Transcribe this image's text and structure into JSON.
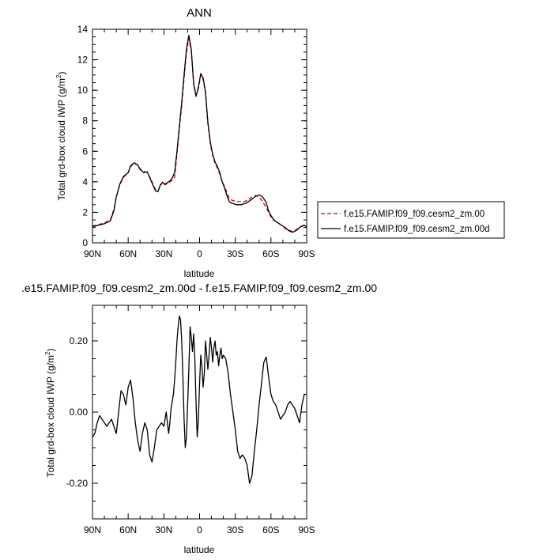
{
  "chart_data": [
    {
      "type": "line",
      "title": "ANN",
      "xlabel": "latitude",
      "ylabel": "Total grd-box cloud IWP (g/m",
      "ylabel_sup": "2",
      "ylabel_close": ")",
      "xlim": [
        90,
        -90
      ],
      "ylim": [
        0,
        14
      ],
      "x_ticks": [
        90,
        60,
        30,
        0,
        -30,
        -60,
        -90
      ],
      "x_tick_labels": [
        "90N",
        "60N",
        "30N",
        "0",
        "30S",
        "60S",
        "90S"
      ],
      "y_ticks": [
        0,
        2,
        4,
        6,
        8,
        10,
        12,
        14
      ],
      "y_tick_labels": [
        "0",
        "2",
        "4",
        "6",
        "8",
        "10",
        "12",
        "14"
      ],
      "legend_position": "right-outside",
      "series": [
        {
          "name": "f.e15.FAMIP.f09_f09.cesm2_zm.00",
          "color": "#cc0000",
          "dash": "dashed",
          "x": [
            90,
            85,
            80,
            75,
            72,
            70,
            67,
            64,
            60,
            58,
            55,
            52,
            50,
            47,
            44,
            41,
            39,
            37,
            35,
            33,
            31,
            29,
            27,
            25,
            23,
            21,
            19,
            17,
            15,
            13,
            11,
            9,
            7,
            5,
            3,
            1,
            -1,
            -3,
            -5,
            -7,
            -9,
            -11,
            -13,
            -15,
            -17,
            -19,
            -21,
            -23,
            -25,
            -27,
            -29,
            -31,
            -33,
            -35,
            -37,
            -39,
            -41,
            -44,
            -47,
            -50,
            -53,
            -56,
            -58,
            -60,
            -62,
            -64,
            -66,
            -68,
            -70,
            -72,
            -74,
            -76,
            -78,
            -80,
            -82,
            -84,
            -86,
            -88,
            -90
          ],
          "y": [
            1.1,
            1.2,
            1.3,
            1.5,
            2.2,
            3.0,
            3.8,
            4.3,
            4.6,
            5.0,
            5.2,
            5.1,
            4.8,
            4.7,
            4.6,
            4.2,
            3.8,
            3.5,
            3.4,
            3.7,
            4.0,
            3.8,
            3.9,
            4.0,
            4.1,
            4.3,
            5.8,
            7.5,
            9.0,
            10.8,
            12.5,
            13.4,
            12.6,
            10.5,
            9.7,
            10.1,
            11.0,
            10.7,
            9.8,
            7.8,
            6.5,
            5.7,
            5.2,
            4.9,
            4.5,
            4.0,
            3.7,
            3.3,
            2.9,
            2.8,
            2.75,
            2.7,
            2.7,
            2.7,
            2.7,
            2.75,
            2.8,
            3.0,
            3.1,
            3.0,
            2.7,
            2.3,
            2.0,
            1.7,
            1.5,
            1.4,
            1.3,
            1.2,
            1.1,
            1.0,
            0.9,
            0.8,
            0.75,
            0.8,
            0.9,
            1.0,
            1.1,
            1.1,
            1.0
          ]
        },
        {
          "name": "f.e15.FAMIP.f09_f09.cesm2_zm.00d",
          "color": "#000000",
          "dash": "solid",
          "x": [
            90,
            85,
            80,
            75,
            72,
            70,
            67,
            64,
            60,
            58,
            55,
            52,
            50,
            47,
            44,
            41,
            39,
            37,
            35,
            33,
            31,
            29,
            27,
            25,
            23,
            21,
            19,
            17,
            15,
            13,
            11,
            9,
            7,
            5,
            3,
            1,
            -1,
            -3,
            -5,
            -7,
            -9,
            -11,
            -13,
            -15,
            -17,
            -19,
            -21,
            -23,
            -25,
            -27,
            -29,
            -31,
            -33,
            -35,
            -37,
            -39,
            -41,
            -44,
            -47,
            -50,
            -53,
            -56,
            -58,
            -60,
            -62,
            -64,
            -66,
            -68,
            -70,
            -72,
            -74,
            -76,
            -78,
            -80,
            -82,
            -84,
            -86,
            -88,
            -90
          ],
          "y": [
            1.05,
            1.15,
            1.25,
            1.45,
            2.1,
            3.0,
            3.85,
            4.35,
            4.6,
            5.05,
            5.25,
            5.1,
            4.85,
            4.6,
            4.65,
            4.1,
            3.75,
            3.4,
            3.35,
            3.8,
            3.95,
            3.85,
            3.95,
            4.05,
            4.25,
            4.6,
            6.0,
            7.6,
            9.2,
            11.0,
            12.7,
            13.6,
            12.7,
            10.4,
            9.6,
            10.2,
            11.1,
            10.8,
            9.9,
            7.9,
            6.6,
            5.8,
            5.3,
            5.0,
            4.6,
            4.0,
            3.6,
            3.1,
            2.7,
            2.6,
            2.55,
            2.5,
            2.5,
            2.5,
            2.55,
            2.6,
            2.7,
            2.85,
            3.05,
            3.15,
            3.0,
            2.65,
            2.1,
            1.8,
            1.55,
            1.4,
            1.3,
            1.2,
            1.1,
            0.95,
            0.85,
            0.75,
            0.7,
            0.75,
            0.85,
            1.0,
            1.1,
            1.15,
            1.05
          ]
        }
      ]
    },
    {
      "type": "line",
      "title": ".e15.FAMIP.f09_f09.cesm2_zm.00d - f.e15.FAMIP.f09_f09.cesm2_zm.00",
      "xlabel": "latitude",
      "ylabel": "Total grd-box cloud IWP (g/m",
      "ylabel_sup": "2",
      "ylabel_close": ")",
      "xlim": [
        90,
        -90
      ],
      "ylim": [
        -0.3,
        0.3
      ],
      "x_ticks": [
        90,
        60,
        30,
        0,
        -30,
        -60,
        -90
      ],
      "x_tick_labels": [
        "90N",
        "60N",
        "30N",
        "0",
        "30S",
        "60S",
        "90S"
      ],
      "y_ticks": [
        0.2,
        0.0,
        -0.2
      ],
      "y_tick_labels": [
        "0.20",
        "0.00",
        "-0.20"
      ],
      "series": [
        {
          "color": "#000000",
          "dash": "solid",
          "x": [
            90,
            88,
            86,
            84,
            82,
            80,
            78,
            76,
            74,
            72,
            70,
            68,
            66,
            64,
            62,
            60,
            58,
            56,
            54,
            52,
            50,
            48,
            46,
            44,
            42,
            40,
            38,
            36,
            34,
            32,
            30,
            28,
            27,
            26,
            25,
            24,
            23,
            22,
            21,
            20,
            19,
            18,
            17,
            16,
            15,
            14,
            13,
            12,
            11,
            10,
            9,
            8,
            7,
            6,
            5,
            4,
            3,
            2,
            1,
            0,
            -1,
            -2,
            -3,
            -4,
            -5,
            -6,
            -7,
            -8,
            -9,
            -10,
            -11,
            -12,
            -13,
            -14,
            -15,
            -16,
            -17,
            -18,
            -19,
            -20,
            -22,
            -24,
            -26,
            -28,
            -30,
            -32,
            -34,
            -36,
            -38,
            -40,
            -42,
            -44,
            -46,
            -48,
            -50,
            -52,
            -54,
            -56,
            -58,
            -60,
            -62,
            -64,
            -66,
            -68,
            -70,
            -72,
            -74,
            -76,
            -78,
            -80,
            -82,
            -84,
            -86,
            -88,
            -90
          ],
          "y": [
            -0.07,
            -0.06,
            -0.03,
            -0.01,
            -0.02,
            -0.03,
            -0.04,
            -0.03,
            -0.02,
            -0.04,
            -0.06,
            0.0,
            0.06,
            0.05,
            0.02,
            0.07,
            0.09,
            0.04,
            -0.03,
            -0.08,
            -0.11,
            -0.06,
            -0.03,
            -0.05,
            -0.12,
            -0.14,
            -0.1,
            -0.05,
            -0.04,
            -0.03,
            -0.04,
            0.0,
            -0.03,
            -0.06,
            -0.03,
            0.01,
            0.03,
            0.05,
            0.09,
            0.14,
            0.2,
            0.24,
            0.27,
            0.26,
            0.2,
            0.1,
            -0.02,
            -0.1,
            -0.07,
            0.02,
            0.12,
            0.24,
            0.21,
            0.17,
            0.22,
            0.15,
            0.03,
            -0.07,
            -0.02,
            0.08,
            0.16,
            0.13,
            0.07,
            0.11,
            0.2,
            0.16,
            0.12,
            0.16,
            0.21,
            0.18,
            0.14,
            0.18,
            0.2,
            0.16,
            0.17,
            0.13,
            0.16,
            0.18,
            0.15,
            0.16,
            0.15,
            0.11,
            0.05,
            0.0,
            -0.05,
            -0.11,
            -0.13,
            -0.12,
            -0.13,
            -0.15,
            -0.2,
            -0.18,
            -0.11,
            -0.05,
            0.02,
            0.08,
            0.14,
            0.155,
            0.1,
            0.05,
            0.03,
            0.02,
            0.0,
            -0.02,
            -0.01,
            0.0,
            0.02,
            0.03,
            0.02,
            0.01,
            -0.01,
            -0.03,
            0.02,
            0.05,
            0.05
          ]
        }
      ]
    }
  ]
}
